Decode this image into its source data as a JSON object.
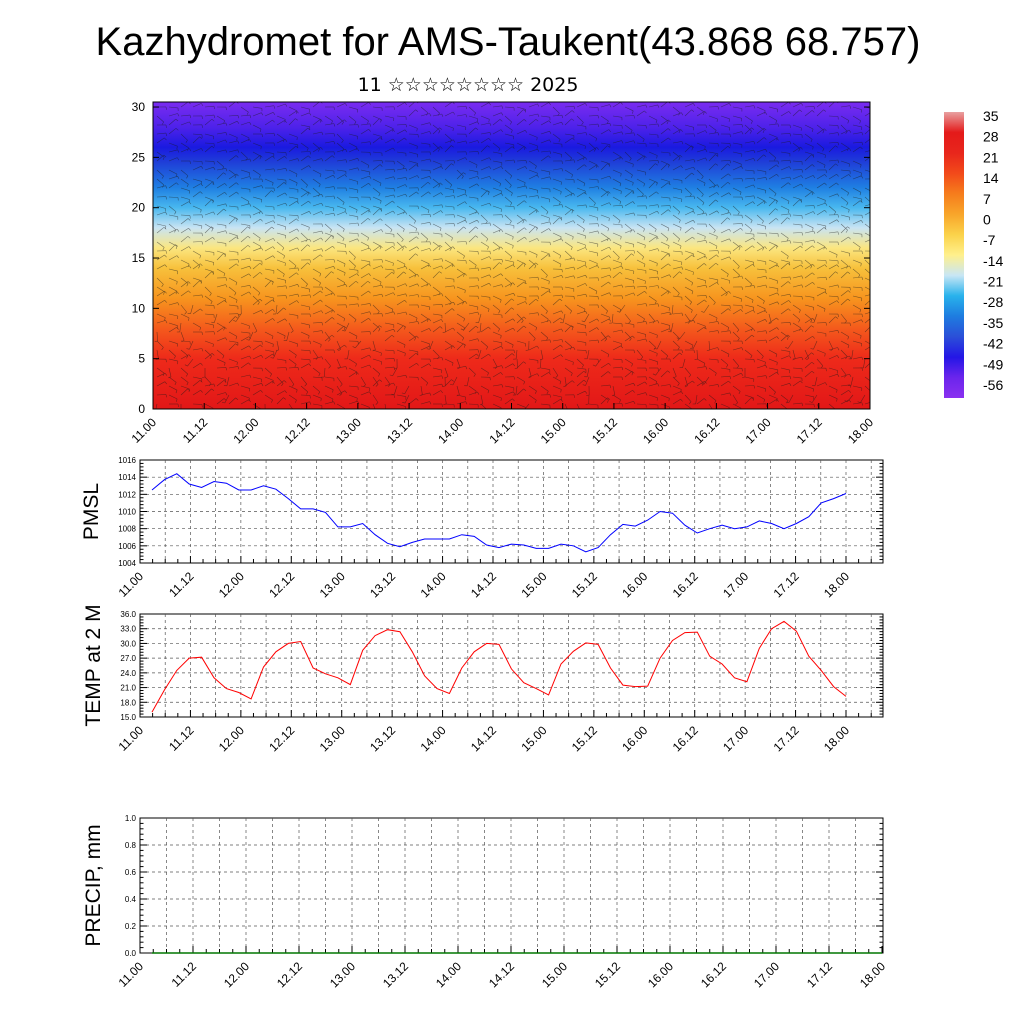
{
  "title": "Kazhydromet for AMS-Taukent(43.868 68.757)",
  "subtitle": "11 ☆☆☆☆☆☆☆☆ 2025",
  "chart_data": [
    {
      "type": "heatmap",
      "name": "cross-section",
      "description_none": "",
      "x_ticks": [
        "11.00",
        "11.12",
        "12.00",
        "12.12",
        "13.00",
        "13.12",
        "14.00",
        "14.12",
        "15.00",
        "15.12",
        "16.00",
        "16.12",
        "17.00",
        "17.12",
        "18.00"
      ],
      "y_ticks": [
        "0",
        "5",
        "10",
        "15",
        "20",
        "25",
        "30"
      ],
      "ylim": [
        0,
        30.5
      ],
      "colorbar_labels": [
        "35",
        "28",
        "21",
        "14",
        "7",
        "0",
        "-7",
        "-14",
        "-21",
        "-28",
        "-35",
        "-42",
        "-49",
        "-56"
      ],
      "colorbar_colors": [
        "#e8a0a0",
        "#e41a1a",
        "#e8261c",
        "#f24a1a",
        "#f67d1c",
        "#f8a52a",
        "#fbd24a",
        "#fff08c",
        "#c8e6f5",
        "#28b2ec",
        "#1e7ce0",
        "#2b4fd8",
        "#2416e6",
        "#6b25ec",
        "#8a30f0"
      ],
      "vertical_profile_colors": [
        {
          "level": 0,
          "color": "#e21717"
        },
        {
          "level": 5,
          "color": "#ee2a1a"
        },
        {
          "level": 8,
          "color": "#f45a1c"
        },
        {
          "level": 11,
          "color": "#f7951e"
        },
        {
          "level": 14,
          "color": "#f7c13c"
        },
        {
          "level": 16,
          "color": "#fbe680"
        },
        {
          "level": 18,
          "color": "#c9e4f3"
        },
        {
          "level": 20,
          "color": "#49b8ef"
        },
        {
          "level": 22,
          "color": "#1f7fe2"
        },
        {
          "level": 24.5,
          "color": "#1f3fd8"
        },
        {
          "level": 26,
          "color": "#1a1ae0"
        },
        {
          "level": 28,
          "color": "#4e22ea"
        },
        {
          "level": 30.5,
          "color": "#7a2cf0"
        }
      ],
      "contours": "wind barbs overlay"
    },
    {
      "type": "line",
      "ylabel": "PMSL",
      "x_ticks": [
        "11.00",
        "11.12",
        "12.00",
        "12.12",
        "13.00",
        "13.12",
        "14.00",
        "14.12",
        "15.00",
        "15.12",
        "16.00",
        "16.12",
        "17.00",
        "17.12",
        "18.00"
      ],
      "y_ticks": [
        "1004",
        "1006",
        "1008",
        "1010",
        "1012",
        "1014",
        "1016"
      ],
      "ylim": [
        1004,
        1016
      ],
      "grid": true,
      "color": "#0000ff",
      "series": [
        {
          "values": [
            1012.5,
            1013.7,
            1014.4,
            1013.2,
            1012.8,
            1013.5,
            1013.3,
            1012.5,
            1012.5,
            1013.0,
            1012.6,
            1011.5,
            1010.3,
            1010.3,
            1009.9,
            1008.2,
            1008.2,
            1008.6,
            1007.3,
            1006.3,
            1005.9,
            1006.4,
            1006.8,
            1006.8,
            1006.8,
            1007.3,
            1007.1,
            1006.1,
            1005.8,
            1006.2,
            1006.1,
            1005.7,
            1005.7,
            1006.2,
            1006.0,
            1005.3,
            1005.8,
            1007.3,
            1008.5,
            1008.3,
            1009.0,
            1010.0,
            1009.8,
            1008.4,
            1007.5,
            1008.0,
            1008.4,
            1008.0,
            1008.2,
            1008.9,
            1008.6,
            1008.0,
            1008.6,
            1009.4,
            1011.0,
            1011.5,
            1012.1
          ]
        }
      ]
    },
    {
      "type": "line",
      "ylabel": "TEMP at 2 M",
      "x_ticks": [
        "11.00",
        "11.12",
        "12.00",
        "12.12",
        "13.00",
        "13.12",
        "14.00",
        "14.12",
        "15.00",
        "15.12",
        "16.00",
        "16.12",
        "17.00",
        "17.12",
        "18.00"
      ],
      "y_ticks": [
        "15.0",
        "18.0",
        "21.0",
        "24.0",
        "27.0",
        "30.0",
        "33.0",
        "36.0"
      ],
      "ylim": [
        15,
        36
      ],
      "grid": true,
      "color": "#ff0000",
      "series": [
        {
          "values": [
            16.0,
            20.5,
            24.5,
            27.0,
            27.2,
            23.0,
            20.8,
            20.0,
            18.7,
            25.2,
            28.3,
            30.0,
            30.4,
            25.0,
            23.8,
            23.0,
            21.6,
            28.6,
            31.6,
            32.8,
            32.4,
            28.3,
            23.4,
            20.8,
            19.8,
            25.0,
            28.3,
            30.0,
            29.8,
            24.8,
            22.0,
            20.8,
            19.5,
            25.8,
            28.4,
            30.1,
            29.8,
            25.0,
            21.5,
            21.2,
            21.3,
            27.0,
            30.6,
            32.2,
            32.3,
            27.4,
            25.8,
            23.0,
            22.2,
            29.0,
            33.0,
            34.5,
            32.5,
            27.4,
            24.5,
            21.2,
            19.2
          ]
        }
      ]
    },
    {
      "type": "line",
      "ylabel": "PRECIP, mm",
      "x_ticks": [
        "11.00",
        "11.12",
        "12.00",
        "12.12",
        "13.00",
        "13.12",
        "14.00",
        "14.12",
        "15.00",
        "15.12",
        "16.00",
        "16.12",
        "17.00",
        "17.12",
        "18.00"
      ],
      "y_ticks": [
        "0.0",
        "0.2",
        "0.4",
        "0.6",
        "0.8",
        "1.0"
      ],
      "ylim": [
        0,
        1
      ],
      "grid": true,
      "color": "#007700",
      "series": [
        {
          "values": [
            0,
            0,
            0,
            0,
            0,
            0,
            0,
            0,
            0,
            0,
            0,
            0,
            0,
            0,
            0,
            0,
            0,
            0,
            0,
            0,
            0,
            0,
            0,
            0,
            0,
            0,
            0,
            0,
            0,
            0,
            0,
            0,
            0,
            0,
            0,
            0,
            0,
            0,
            0,
            0,
            0,
            0,
            0,
            0,
            0,
            0,
            0,
            0,
            0,
            0,
            0,
            0,
            0,
            0,
            0,
            0,
            0
          ]
        }
      ]
    }
  ]
}
